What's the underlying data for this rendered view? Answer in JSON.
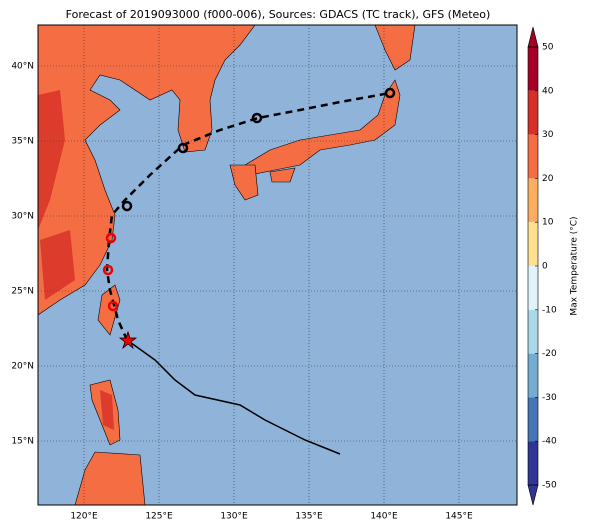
{
  "map": {
    "title": "Forecast of 2019093000 (f000-006), Sources: GDACS (TC track), GFS (Meteo)",
    "lon_ticks": [
      {
        "value": 120,
        "label": "120°E"
      },
      {
        "value": 125,
        "label": "125°E"
      },
      {
        "value": 130,
        "label": "130°E"
      },
      {
        "value": 135,
        "label": "135°E"
      },
      {
        "value": 140,
        "label": "140°E"
      },
      {
        "value": 145,
        "label": "145°E"
      }
    ],
    "lat_ticks": [
      {
        "value": 40,
        "label": "40°N"
      },
      {
        "value": 35,
        "label": "35°N"
      },
      {
        "value": 30,
        "label": "30°N"
      },
      {
        "value": 25,
        "label": "25°N"
      },
      {
        "value": 20,
        "label": "20°N"
      },
      {
        "value": 15,
        "label": "15°N"
      }
    ],
    "colorbar": {
      "label": "Max Temperature (°C)",
      "ticks": [
        50,
        40,
        30,
        20,
        10,
        0,
        -10,
        -20,
        -30,
        -40,
        -50
      ],
      "colors": [
        "#a50026",
        "#d73027",
        "#f46d43",
        "#fdae61",
        "#fee090",
        "#e0f3f8",
        "#abd9e9",
        "#74add1",
        "#4575b4",
        "#313695"
      ]
    }
  }
}
